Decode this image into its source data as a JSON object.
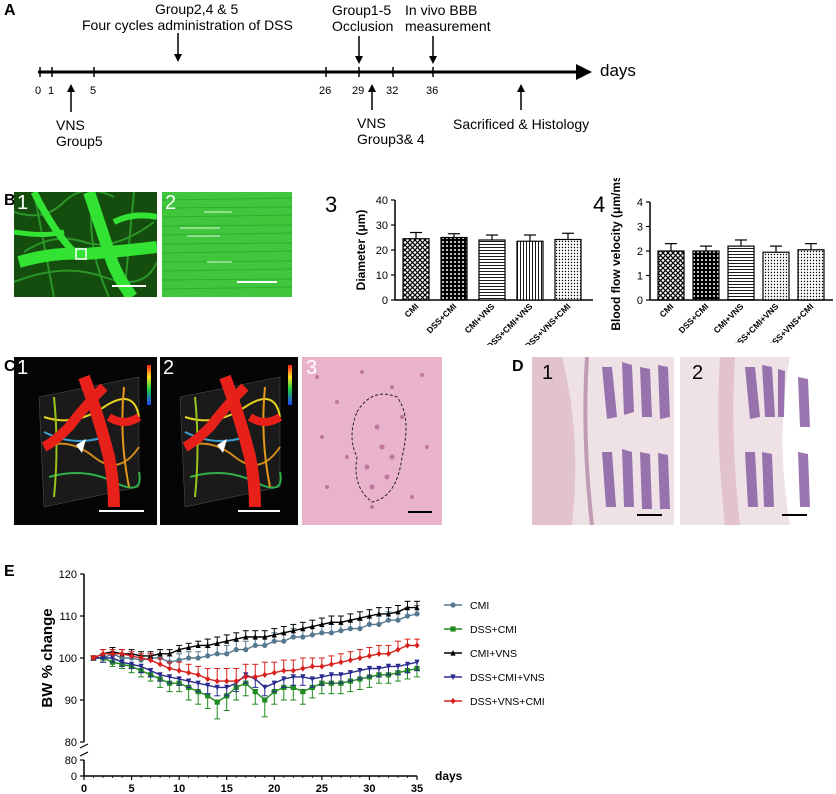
{
  "panels": {
    "A": "A",
    "B": "B",
    "C": "C",
    "D": "D",
    "E": "E"
  },
  "timeline": {
    "axis_label": "days",
    "ticks": [
      "0",
      "1",
      "5",
      "26",
      "29",
      "32",
      "36"
    ],
    "above": {
      "dss_line1": "Group2,4 & 5",
      "dss_line2": "Four cycles administration of DSS",
      "occ_line1": "Group1-5",
      "occ_line2": "Occlusion",
      "bbb_line1": "In vivo BBB",
      "bbb_line2": "measurement"
    },
    "below": {
      "vns5_line1": "VNS",
      "vns5_line2": "Group5",
      "vns34_line1": "VNS",
      "vns34_line2": "Group3& 4",
      "sac": "Sacrificed & Histology"
    }
  },
  "subpanels": {
    "b1": "1",
    "b2": "2",
    "b3": "3",
    "b4": "4",
    "c1": "1",
    "c2": "2",
    "c3": "3",
    "d1": "1",
    "d2": "2"
  },
  "colors": {
    "green": "#22d322",
    "red_vessel": "#e8201a",
    "he_pink": "#e7a9c4",
    "colon_purple": "#8a5fa3"
  },
  "chart_data": [
    {
      "type": "bar",
      "id": "diameter",
      "categories": [
        "CMI",
        "DSS+CMI",
        "CMI+VNS",
        "DSS+CMI+VNS",
        "DSS+VNS+CMI"
      ],
      "values": [
        24.5,
        25.0,
        24.0,
        23.5,
        24.2
      ],
      "errors": [
        2.5,
        1.5,
        2.0,
        2.5,
        2.5
      ],
      "ylabel": "Diameter (μm)",
      "ylim": [
        0,
        40
      ],
      "yticks": [
        "0",
        "10",
        "20",
        "30",
        "40"
      ],
      "patterns": [
        "crosshatch",
        "diamond",
        "hlines",
        "vlines",
        "dots"
      ]
    },
    {
      "type": "bar",
      "id": "velocity",
      "categories": [
        "CMI",
        "DSS+CMI",
        "CMI+VNS",
        "DSS+CMI+VNS",
        "DSS+VNS+CMI"
      ],
      "values": [
        2.0,
        2.0,
        2.2,
        1.95,
        2.05
      ],
      "errors": [
        0.3,
        0.2,
        0.25,
        0.25,
        0.25
      ],
      "ylabel": "Blood flow velocity (μm/ms)",
      "ylim": [
        0,
        4
      ],
      "yticks": [
        "0",
        "1",
        "2",
        "3",
        "4"
      ],
      "patterns": [
        "crosshatch",
        "diamond",
        "hlines",
        "dots",
        "dots"
      ]
    },
    {
      "type": "line",
      "id": "bw_change",
      "xlabel": "days",
      "ylabel": "BW % change",
      "xlim": [
        0,
        35
      ],
      "xticks": [
        "0",
        "5",
        "10",
        "15",
        "20",
        "25",
        "30",
        "35"
      ],
      "yticks_top": [
        "80",
        "90",
        "100",
        "110",
        "120"
      ],
      "yticks_bottom": [
        "0",
        "80"
      ],
      "ylim": [
        80,
        120
      ],
      "x": [
        1,
        2,
        3,
        4,
        5,
        6,
        7,
        8,
        9,
        10,
        11,
        12,
        13,
        14,
        15,
        16,
        17,
        18,
        19,
        20,
        21,
        22,
        23,
        24,
        25,
        26,
        27,
        28,
        29,
        30,
        31,
        32,
        33,
        34,
        35
      ],
      "series": [
        {
          "name": "CMI",
          "color": "#55788f",
          "marker": "dot",
          "values": [
            100,
            100,
            101,
            100,
            100,
            99.5,
            100,
            100,
            99,
            99.5,
            100,
            100,
            100.5,
            101,
            101,
            102,
            102,
            103,
            103,
            104,
            104,
            105,
            105,
            105.5,
            106,
            106,
            106.5,
            107,
            107,
            108,
            108,
            109,
            109,
            110,
            110.5
          ],
          "errors": [
            0.5,
            1,
            1,
            1,
            1,
            1,
            1,
            1,
            1.5,
            1.5,
            1.5,
            1.5,
            2,
            2,
            2,
            2,
            2,
            2,
            2,
            2,
            2,
            2,
            2,
            2,
            2,
            2,
            2,
            2,
            2,
            2,
            2,
            2,
            2,
            2,
            2
          ]
        },
        {
          "name": "DSS+CMI",
          "color": "#1f8a1f",
          "marker": "square",
          "values": [
            100,
            100,
            99,
            98.5,
            98,
            97,
            96,
            95,
            94,
            94,
            93,
            92,
            91,
            89.5,
            91,
            93,
            94,
            92,
            90,
            92,
            93,
            93,
            92,
            93,
            94,
            94,
            94,
            94.5,
            95,
            95.5,
            96,
            96,
            96.5,
            97,
            97.5
          ],
          "errors": [
            0.5,
            1,
            1,
            1,
            1.5,
            1.5,
            1.5,
            2,
            2,
            2,
            3,
            3,
            3,
            4,
            3.5,
            3,
            3,
            3,
            4,
            3,
            3,
            3,
            3,
            2.5,
            2.5,
            2.5,
            2.5,
            2.5,
            2.5,
            2.5,
            2,
            2,
            2,
            2,
            2
          ]
        },
        {
          "name": "CMI+VNS",
          "color": "#000000",
          "marker": "triangle",
          "values": [
            100,
            101,
            101.5,
            101,
            101,
            100.5,
            100.5,
            101,
            101,
            102,
            102.5,
            103,
            103,
            103.5,
            104,
            104.5,
            105,
            105,
            105,
            105.5,
            106,
            106.5,
            107,
            107.5,
            108,
            108.5,
            108.5,
            109,
            109.5,
            110,
            110.5,
            110.5,
            111,
            112,
            112
          ],
          "errors": [
            0.5,
            1,
            1,
            1,
            1,
            1,
            1,
            1,
            1,
            1,
            1,
            1,
            1.5,
            1.5,
            1.5,
            1.5,
            1.5,
            1.5,
            1.5,
            1.5,
            1.5,
            1.5,
            1.5,
            1.5,
            1.5,
            1.5,
            1.5,
            1.5,
            1.5,
            1.5,
            1.5,
            1.5,
            1.5,
            1.5,
            1.5
          ]
        },
        {
          "name": "DSS+CMI+VNS",
          "color": "#2b2b8f",
          "marker": "triangle-down",
          "values": [
            100,
            100,
            100,
            99,
            98.5,
            98,
            97,
            96,
            95.5,
            95,
            94.5,
            94,
            93.5,
            93,
            93,
            94,
            96,
            95,
            93,
            94,
            95,
            95.5,
            95.5,
            95,
            95.5,
            96,
            96,
            96.5,
            97,
            97.5,
            97.5,
            98,
            98,
            98.5,
            99
          ],
          "errors": [
            0.5,
            1,
            1,
            1,
            1,
            1.5,
            1.5,
            1.5,
            1.5,
            1.5,
            1.5,
            2,
            2,
            2,
            2,
            2,
            2,
            2,
            2,
            2,
            2,
            2,
            2,
            2,
            2,
            2,
            2,
            2,
            2,
            2,
            2,
            2,
            2,
            2,
            2
          ]
        },
        {
          "name": "DSS+VNS+CMI",
          "color": "#d9201c",
          "marker": "diamond",
          "values": [
            100,
            101,
            101,
            101,
            100.5,
            100,
            99.5,
            98.5,
            97.5,
            97,
            96.5,
            96,
            95,
            94.5,
            94.5,
            94.5,
            95.5,
            95.5,
            96,
            96.5,
            97,
            97,
            97.5,
            98,
            98,
            98.5,
            99,
            99.5,
            100,
            100.5,
            101,
            101,
            102,
            103,
            103
          ],
          "errors": [
            0.5,
            1,
            1,
            1,
            1,
            1,
            1.5,
            1.5,
            1.5,
            2,
            2,
            2,
            2.5,
            3,
            3,
            3,
            3,
            3,
            3,
            2.5,
            2.5,
            2.5,
            2.5,
            2,
            2,
            2,
            2,
            2,
            2,
            2,
            2,
            2,
            2,
            1.5,
            1.5
          ]
        }
      ]
    }
  ]
}
